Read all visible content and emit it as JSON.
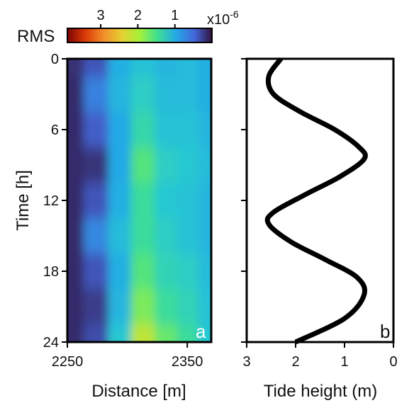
{
  "colors": {
    "heatmap_low": "#2a1a4a",
    "heatmap_high": "#e8b02c",
    "tide_curve": "#000000",
    "frame": "#000000"
  },
  "chart_data": [
    {
      "type": "heatmap",
      "panel_label": "a",
      "xlabel": "Distance [m]",
      "ylabel": "Time [h]",
      "xlim": [
        2250,
        2370
      ],
      "ylim": [
        0,
        24
      ],
      "y_inverted": true,
      "xticks": [
        2250,
        2350
      ],
      "yticks": [
        0,
        6,
        12,
        18,
        24
      ],
      "colorbar": {
        "label": "RMS",
        "multiplier": "x10-6",
        "multiplier_base": "x10",
        "multiplier_exponent": "-6",
        "ticks": [
          3,
          2,
          1
        ],
        "range": [
          0,
          3.9
        ],
        "reversed": true,
        "colormap": "turbo-like"
      },
      "rows": [
        {
          "time": 0,
          "values": [
            0.18,
            0.4,
            1.1,
            1.4,
            1.2,
            1.3,
            1.1
          ]
        },
        {
          "time": 3,
          "values": [
            0.15,
            0.7,
            1.2,
            1.6,
            1.3,
            1.3,
            1.1
          ]
        },
        {
          "time": 6,
          "values": [
            0.15,
            0.45,
            1.0,
            1.8,
            1.4,
            1.4,
            1.2
          ]
        },
        {
          "time": 9,
          "values": [
            0.15,
            0.2,
            1.0,
            2.1,
            1.6,
            1.5,
            1.3
          ]
        },
        {
          "time": 12,
          "values": [
            0.15,
            0.4,
            1.1,
            1.9,
            1.5,
            1.4,
            1.2
          ]
        },
        {
          "time": 15,
          "values": [
            0.15,
            0.75,
            1.3,
            1.9,
            1.6,
            1.4,
            1.2
          ]
        },
        {
          "time": 18,
          "values": [
            0.15,
            0.4,
            1.1,
            2.1,
            1.7,
            1.6,
            1.3
          ]
        },
        {
          "time": 21,
          "values": [
            0.15,
            0.25,
            1.2,
            2.3,
            1.9,
            1.7,
            1.4
          ]
        },
        {
          "time": 24,
          "values": [
            0.15,
            0.35,
            1.5,
            2.7,
            2.2,
            1.9,
            1.5
          ]
        }
      ],
      "columns_distance": [
        2252,
        2275,
        2293,
        2313,
        2333,
        2350,
        2368
      ]
    },
    {
      "type": "line",
      "panel_label": "b",
      "xlabel": "Tide height (m)",
      "ylabel": "",
      "xlim": [
        3,
        0
      ],
      "ylim": [
        0,
        24
      ],
      "x_inverted": true,
      "y_inverted": true,
      "xticks": [
        3,
        2,
        1,
        0
      ],
      "series": [
        {
          "x": [
            2.3,
            2.55,
            2.45,
            1.9,
            1.2,
            0.7,
            0.6,
            1.1,
            1.8,
            2.45,
            2.55,
            2.1,
            1.4,
            0.75,
            0.6,
            1.0,
            2.0
          ],
          "y": [
            0,
            1.5,
            3,
            4.5,
            6,
            7.5,
            8.5,
            10,
            11.5,
            13,
            14,
            15.5,
            17,
            18.5,
            20,
            22,
            24
          ]
        }
      ]
    }
  ]
}
